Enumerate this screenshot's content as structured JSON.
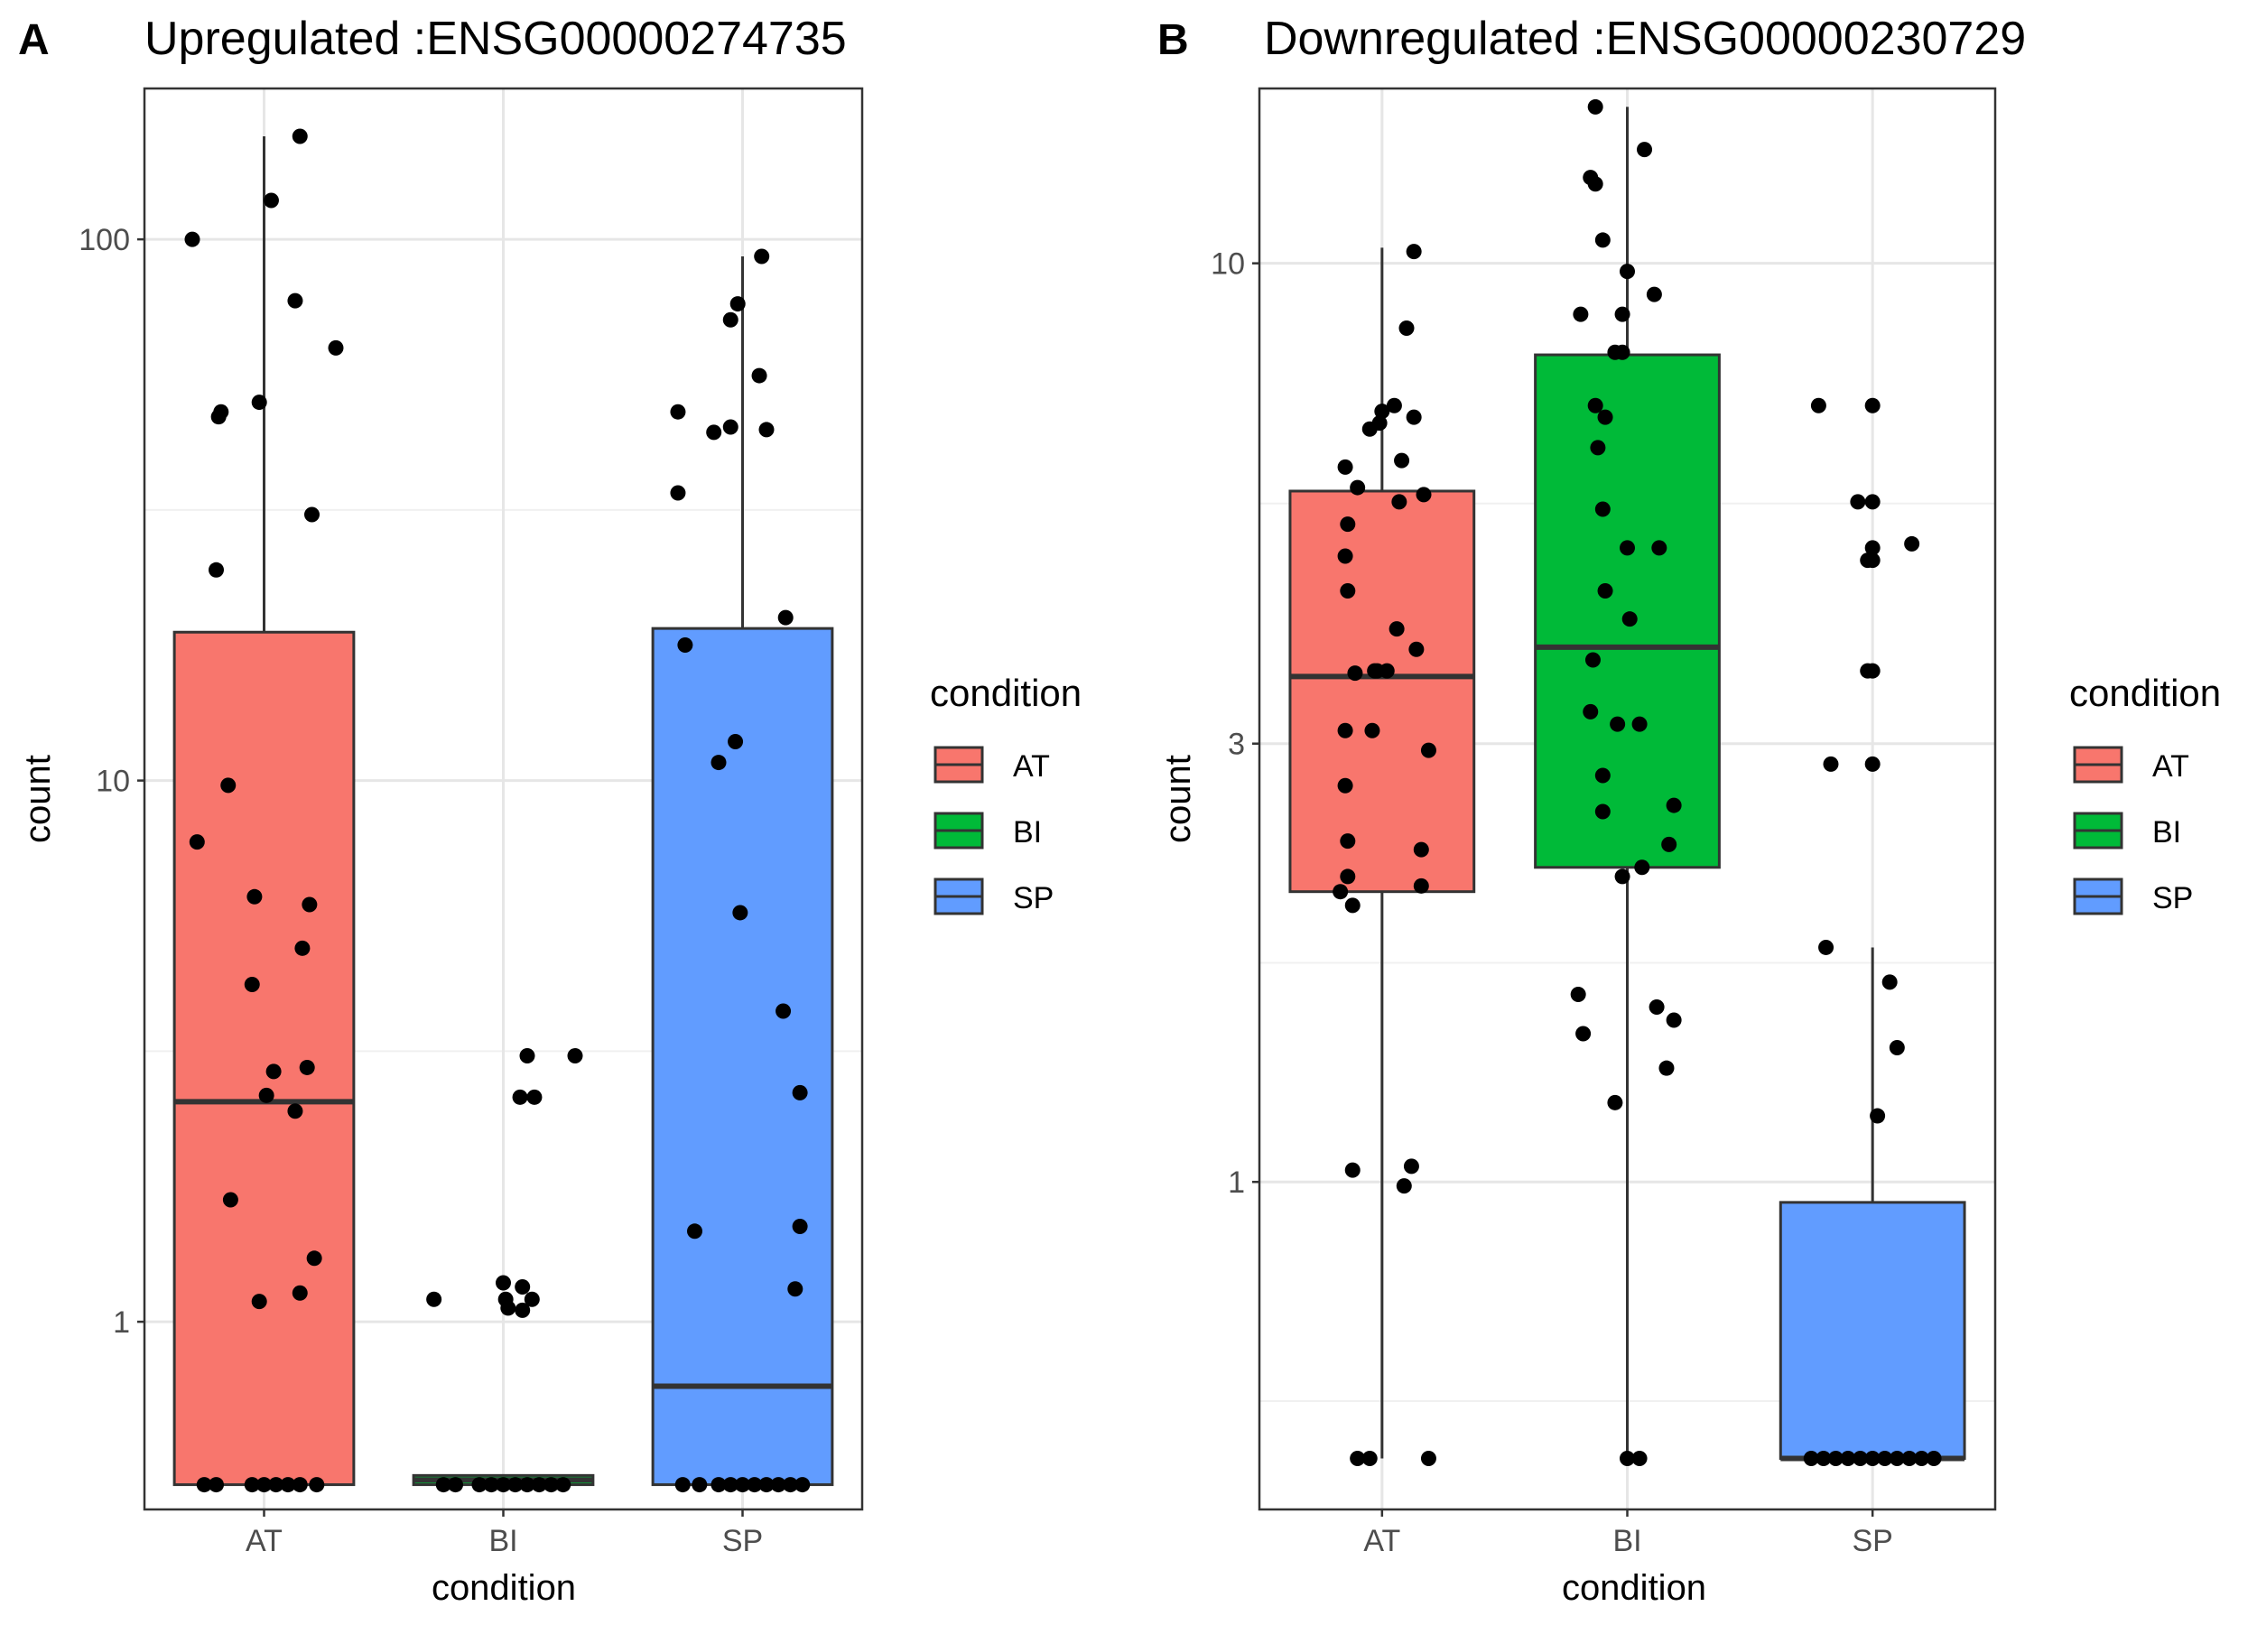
{
  "chart_data": [
    {
      "type": "box",
      "panel_label": "A",
      "title": "Upregulated :ENSG00000274735",
      "xlabel": "condition",
      "ylabel": "count",
      "y_scale": "log10",
      "ylim": [
        0.45,
        190
      ],
      "y_ticks": [
        1,
        10,
        100
      ],
      "y_tick_labels": [
        "1",
        "10",
        "100"
      ],
      "categories": [
        "AT",
        "BI",
        "SP"
      ],
      "colors": {
        "AT": "#F8766D",
        "BI": "#00BA38",
        "SP": "#619CFF"
      },
      "grid": true,
      "boxes": [
        {
          "category": "AT",
          "lower": 0.5,
          "q1": 0.5,
          "median": 2.55,
          "q3": 18.8,
          "upper": 155
        },
        {
          "category": "BI",
          "lower": 0.5,
          "q1": 0.5,
          "median": 0.51,
          "q3": 0.52,
          "upper": 0.52
        },
        {
          "category": "SP",
          "lower": 0.5,
          "q1": 0.5,
          "median": 0.76,
          "q3": 19.1,
          "upper": 93
        }
      ],
      "points": {
        "AT": [
          [
            -0.3,
            100
          ],
          [
            0.03,
            118
          ],
          [
            0.15,
            155
          ],
          [
            0.13,
            77
          ],
          [
            0.3,
            63
          ],
          [
            -0.18,
            48
          ],
          [
            -0.19,
            47
          ],
          [
            -0.02,
            50
          ],
          [
            0.2,
            31
          ],
          [
            -0.2,
            24.5
          ],
          [
            -0.15,
            9.8
          ],
          [
            -0.28,
            7.7
          ],
          [
            -0.04,
            6.1
          ],
          [
            0.19,
            5.9
          ],
          [
            0.16,
            4.9
          ],
          [
            -0.05,
            4.2
          ],
          [
            0.04,
            2.9
          ],
          [
            0.18,
            2.95
          ],
          [
            0.01,
            2.62
          ],
          [
            0.13,
            2.45
          ],
          [
            -0.14,
            1.68
          ],
          [
            0.21,
            1.31
          ],
          [
            -0.02,
            1.09
          ],
          [
            0.15,
            1.13
          ],
          [
            -0.25,
            0.5
          ],
          [
            -0.2,
            0.5
          ],
          [
            -0.05,
            0.5
          ],
          [
            0.0,
            0.5
          ],
          [
            0.05,
            0.5
          ],
          [
            0.1,
            0.5
          ],
          [
            0.15,
            0.5
          ],
          [
            0.22,
            0.5
          ]
        ],
        "BI": [
          [
            0.1,
            3.1
          ],
          [
            0.3,
            3.1
          ],
          [
            0.07,
            2.6
          ],
          [
            0.13,
            2.6
          ],
          [
            0.0,
            1.18
          ],
          [
            0.08,
            1.16
          ],
          [
            0.01,
            1.1
          ],
          [
            0.02,
            1.06
          ],
          [
            0.08,
            1.05
          ],
          [
            -0.29,
            1.1
          ],
          [
            0.12,
            1.1
          ],
          [
            -0.25,
            0.5
          ],
          [
            -0.2,
            0.5
          ],
          [
            -0.1,
            0.5
          ],
          [
            -0.05,
            0.5
          ],
          [
            0.0,
            0.5
          ],
          [
            0.05,
            0.5
          ],
          [
            0.1,
            0.5
          ],
          [
            0.15,
            0.5
          ],
          [
            0.2,
            0.5
          ],
          [
            0.25,
            0.5
          ]
        ],
        "SP": [
          [
            0.08,
            93
          ],
          [
            -0.02,
            76
          ],
          [
            -0.05,
            71
          ],
          [
            0.07,
            56
          ],
          [
            -0.27,
            48
          ],
          [
            -0.12,
            44
          ],
          [
            -0.05,
            45
          ],
          [
            0.1,
            44.5
          ],
          [
            -0.27,
            34
          ],
          [
            0.18,
            20
          ],
          [
            -0.24,
            17.8
          ],
          [
            -0.03,
            11.8
          ],
          [
            -0.1,
            10.8
          ],
          [
            -0.01,
            5.7
          ],
          [
            0.17,
            3.75
          ],
          [
            0.24,
            2.65
          ],
          [
            -0.2,
            1.47
          ],
          [
            0.24,
            1.5
          ],
          [
            0.22,
            1.15
          ],
          [
            -0.25,
            0.5
          ],
          [
            -0.18,
            0.5
          ],
          [
            -0.1,
            0.5
          ],
          [
            -0.05,
            0.5
          ],
          [
            0.0,
            0.5
          ],
          [
            0.05,
            0.5
          ],
          [
            0.1,
            0.5
          ],
          [
            0.15,
            0.5
          ],
          [
            0.2,
            0.5
          ],
          [
            0.25,
            0.5
          ]
        ]
      }
    },
    {
      "type": "box",
      "panel_label": "B",
      "title": "Downregulated :ENSG00000230729",
      "xlabel": "condition",
      "ylabel": "count",
      "y_scale": "log",
      "ylim": [
        0.44,
        15.5
      ],
      "y_ticks": [
        1,
        3,
        10
      ],
      "y_tick_labels": [
        "1",
        "3",
        "10"
      ],
      "categories": [
        "AT",
        "BI",
        "SP"
      ],
      "colors": {
        "AT": "#F8766D",
        "BI": "#00BA38",
        "SP": "#619CFF"
      },
      "grid": true,
      "boxes": [
        {
          "category": "AT",
          "lower": 0.5,
          "q1": 2.07,
          "median": 3.55,
          "q3": 5.65,
          "upper": 10.4
        },
        {
          "category": "BI",
          "lower": 0.5,
          "q1": 2.2,
          "median": 3.82,
          "q3": 7.95,
          "upper": 14.8
        },
        {
          "category": "SP",
          "lower": 0.5,
          "q1": 0.5,
          "median": 0.5,
          "q3": 0.95,
          "upper": 1.8
        }
      ],
      "points": {
        "AT": [
          [
            0.13,
            10.3
          ],
          [
            0.1,
            8.5
          ],
          [
            0.05,
            7.0
          ],
          [
            0.0,
            6.9
          ],
          [
            0.13,
            6.8
          ],
          [
            -0.05,
            6.6
          ],
          [
            -0.01,
            6.7
          ],
          [
            0.08,
            6.1
          ],
          [
            -0.15,
            6.0
          ],
          [
            -0.1,
            5.7
          ],
          [
            0.17,
            5.6
          ],
          [
            0.07,
            5.5
          ],
          [
            -0.14,
            5.2
          ],
          [
            -0.15,
            4.8
          ],
          [
            -0.14,
            4.4
          ],
          [
            0.06,
            4.0
          ],
          [
            0.14,
            3.8
          ],
          [
            -0.03,
            3.6
          ],
          [
            -0.11,
            3.58
          ],
          [
            -0.02,
            3.6
          ],
          [
            0.02,
            3.6
          ],
          [
            -0.15,
            3.1
          ],
          [
            -0.04,
            3.1
          ],
          [
            0.19,
            2.95
          ],
          [
            -0.15,
            2.7
          ],
          [
            0.16,
            2.3
          ],
          [
            -0.14,
            2.35
          ],
          [
            -0.14,
            2.15
          ],
          [
            -0.17,
            2.07
          ],
          [
            0.16,
            2.1
          ],
          [
            -0.12,
            2.0
          ],
          [
            -0.12,
            1.03
          ],
          [
            0.12,
            1.04
          ],
          [
            0.09,
            0.99
          ],
          [
            -0.1,
            0.5
          ],
          [
            -0.05,
            0.5
          ],
          [
            0.19,
            0.5
          ]
        ],
        "BI": [
          [
            -0.13,
            14.8
          ],
          [
            0.07,
            13.3
          ],
          [
            -0.15,
            12.4
          ],
          [
            -0.13,
            12.2
          ],
          [
            -0.1,
            10.6
          ],
          [
            0.0,
            9.8
          ],
          [
            0.11,
            9.25
          ],
          [
            -0.19,
            8.8
          ],
          [
            -0.02,
            8.8
          ],
          [
            -0.05,
            8.0
          ],
          [
            -0.02,
            8.0
          ],
          [
            -0.13,
            7.0
          ],
          [
            -0.09,
            6.8
          ],
          [
            -0.12,
            6.3
          ],
          [
            -0.1,
            5.4
          ],
          [
            0.13,
            4.9
          ],
          [
            0.0,
            4.9
          ],
          [
            -0.09,
            4.4
          ],
          [
            0.01,
            4.1
          ],
          [
            -0.14,
            3.7
          ],
          [
            -0.15,
            3.25
          ],
          [
            -0.04,
            3.15
          ],
          [
            0.05,
            3.15
          ],
          [
            -0.1,
            2.77
          ],
          [
            0.19,
            2.57
          ],
          [
            -0.1,
            2.53
          ],
          [
            0.17,
            2.33
          ],
          [
            0.06,
            2.2
          ],
          [
            -0.02,
            2.15
          ],
          [
            -0.2,
            1.6
          ],
          [
            0.12,
            1.55
          ],
          [
            0.19,
            1.5
          ],
          [
            -0.18,
            1.45
          ],
          [
            0.16,
            1.33
          ],
          [
            -0.05,
            1.22
          ],
          [
            0.0,
            0.5
          ],
          [
            0.05,
            0.5
          ]
        ],
        "SP": [
          [
            -0.22,
            7.0
          ],
          [
            0.0,
            7.0
          ],
          [
            -0.06,
            5.5
          ],
          [
            0.0,
            5.5
          ],
          [
            0.0,
            4.9
          ],
          [
            0.16,
            4.95
          ],
          [
            -0.02,
            4.75
          ],
          [
            0.0,
            4.75
          ],
          [
            -0.02,
            3.6
          ],
          [
            0.0,
            3.6
          ],
          [
            -0.17,
            2.85
          ],
          [
            0.0,
            2.85
          ],
          [
            -0.19,
            1.8
          ],
          [
            0.07,
            1.65
          ],
          [
            0.1,
            1.4
          ],
          [
            0.02,
            1.18
          ],
          [
            -0.25,
            0.5
          ],
          [
            -0.2,
            0.5
          ],
          [
            -0.15,
            0.5
          ],
          [
            -0.1,
            0.5
          ],
          [
            -0.05,
            0.5
          ],
          [
            0.0,
            0.5
          ],
          [
            0.05,
            0.5
          ],
          [
            0.1,
            0.5
          ],
          [
            0.15,
            0.5
          ],
          [
            0.2,
            0.5
          ],
          [
            0.25,
            0.5
          ]
        ]
      }
    }
  ],
  "legends": [
    {
      "title": "condition",
      "items": [
        "AT",
        "BI",
        "SP"
      ]
    },
    {
      "title": "condition",
      "items": [
        "AT",
        "BI",
        "SP"
      ]
    }
  ]
}
